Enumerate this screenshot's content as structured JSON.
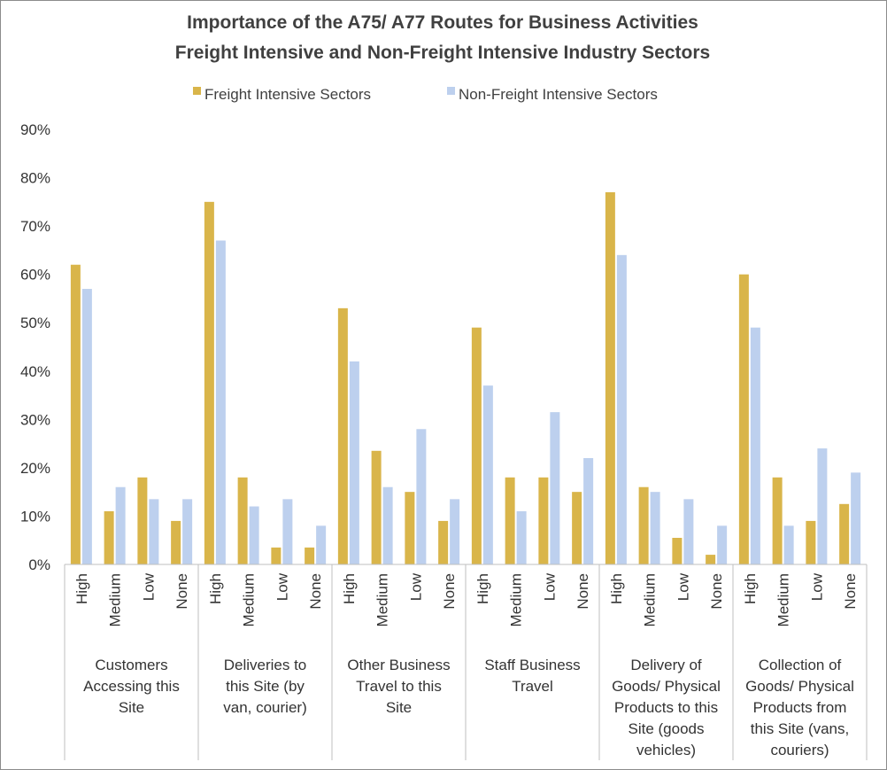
{
  "chart_data": {
    "type": "bar",
    "title": "Importance of the A75/ A77 Routes for Business Activities",
    "subtitle": "Freight Intensive and Non-Freight Intensive Industry Sectors",
    "legend_position": "top",
    "grid": false,
    "ylim": [
      0,
      90
    ],
    "y_ticks": [
      "0%",
      "10%",
      "20%",
      "30%",
      "40%",
      "50%",
      "60%",
      "70%",
      "80%",
      "90%"
    ],
    "groups": [
      {
        "label_lines": [
          "Customers",
          "Accessing this",
          "Site"
        ],
        "categories": [
          "High",
          "Medium",
          "Low",
          "None"
        ]
      },
      {
        "label_lines": [
          "Deliveries to",
          "this Site (by",
          "van, courier)"
        ],
        "categories": [
          "High",
          "Medium",
          "Low",
          "None"
        ]
      },
      {
        "label_lines": [
          "Other Business",
          "Travel to this",
          "Site"
        ],
        "categories": [
          "High",
          "Medium",
          "Low",
          "None"
        ]
      },
      {
        "label_lines": [
          "Staff Business",
          "Travel"
        ],
        "categories": [
          "High",
          "Medium",
          "Low",
          "None"
        ]
      },
      {
        "label_lines": [
          "Delivery of",
          "Goods/ Physical",
          "Products to this",
          "Site (goods",
          "vehicles)"
        ],
        "categories": [
          "High",
          "Medium",
          "Low",
          "None"
        ]
      },
      {
        "label_lines": [
          "Collection of",
          "Goods/ Physical",
          "Products from",
          "this Site (vans,",
          "couriers)"
        ],
        "categories": [
          "High",
          "Medium",
          "Low",
          "None"
        ]
      }
    ],
    "series": [
      {
        "name": "Freight Intensive Sectors",
        "color": "#d9b54a",
        "values": [
          62,
          11,
          18,
          9,
          75,
          18,
          3.5,
          3.5,
          53,
          23.5,
          15,
          9,
          49,
          18,
          18,
          15,
          77,
          16,
          5.5,
          2,
          60,
          18,
          9,
          12.5
        ]
      },
      {
        "name": "Non-Freight Intensive Sectors",
        "color": "#bdd0ee",
        "values": [
          57,
          16,
          13.5,
          13.5,
          67,
          12,
          13.5,
          8,
          42,
          16,
          28,
          13.5,
          37,
          11,
          31.5,
          22,
          64,
          15,
          13.5,
          8,
          49,
          8,
          24,
          19
        ]
      }
    ]
  }
}
